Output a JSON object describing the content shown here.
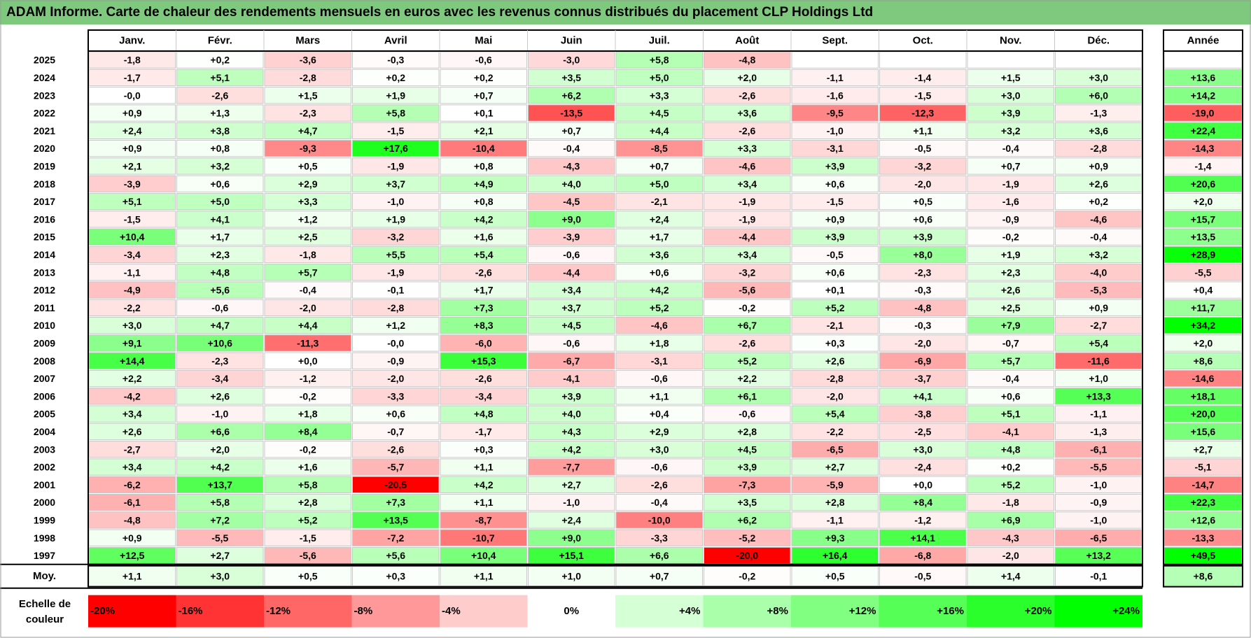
{
  "title": "ADAM Informe. Carte de chaleur des rendements mensuels en euros avec les revenus connus distribués du placement CLP Holdings Ltd",
  "chart_data": {
    "type": "heatmap",
    "title": "ADAM Informe. Carte de chaleur des rendements mensuels en euros avec les revenus connus distribués du placement CLP Holdings Ltd",
    "columns": [
      "Janv.",
      "Févr.",
      "Mars",
      "Avril",
      "Mai",
      "Juin",
      "Juil.",
      "Août",
      "Sept.",
      "Oct.",
      "Nov.",
      "Déc."
    ],
    "year_column_label": "Année",
    "rows": [
      {
        "year": "2025",
        "months": [
          "-1,8",
          "+0,2",
          "-3,6",
          "-0,3",
          "-0,6",
          "-3,0",
          "+5,8",
          "-4,8",
          "",
          "",
          "",
          ""
        ],
        "annual": ""
      },
      {
        "year": "2024",
        "months": [
          "-1,7",
          "+5,1",
          "-2,8",
          "+0,2",
          "+0,2",
          "+3,5",
          "+5,0",
          "+2,0",
          "-1,1",
          "-1,4",
          "+1,5",
          "+3,0"
        ],
        "annual": "+13,6"
      },
      {
        "year": "2023",
        "months": [
          "-0,0",
          "-2,6",
          "+1,5",
          "+1,9",
          "+0,7",
          "+6,2",
          "+3,3",
          "-2,6",
          "-1,6",
          "-1,5",
          "+3,0",
          "+6,0"
        ],
        "annual": "+14,2"
      },
      {
        "year": "2022",
        "months": [
          "+0,9",
          "+1,3",
          "-2,3",
          "+5,8",
          "+0,1",
          "-13,5",
          "+4,5",
          "+3,6",
          "-9,5",
          "-12,3",
          "+3,9",
          "-1,3"
        ],
        "annual": "-19,0"
      },
      {
        "year": "2021",
        "months": [
          "+2,4",
          "+3,8",
          "+4,7",
          "-1,5",
          "+2,1",
          "+0,7",
          "+4,4",
          "-2,6",
          "-1,0",
          "+1,1",
          "+3,2",
          "+3,6"
        ],
        "annual": "+22,4"
      },
      {
        "year": "2020",
        "months": [
          "+0,9",
          "+0,8",
          "-9,3",
          "+17,6",
          "-10,4",
          "-0,4",
          "-8,5",
          "+3,3",
          "-3,1",
          "-0,5",
          "-0,4",
          "-2,8"
        ],
        "annual": "-14,3"
      },
      {
        "year": "2019",
        "months": [
          "+2,1",
          "+3,2",
          "+0,5",
          "-1,9",
          "+0,8",
          "-4,3",
          "+0,7",
          "-4,6",
          "+3,9",
          "-3,2",
          "+0,7",
          "+0,9"
        ],
        "annual": "-1,4"
      },
      {
        "year": "2018",
        "months": [
          "-3,9",
          "+0,6",
          "+2,9",
          "+3,7",
          "+4,9",
          "+4,0",
          "+5,0",
          "+3,4",
          "+0,6",
          "-2,0",
          "-1,9",
          "+2,6"
        ],
        "annual": "+20,6"
      },
      {
        "year": "2017",
        "months": [
          "+5,1",
          "+5,0",
          "+3,3",
          "-1,0",
          "+0,8",
          "-4,5",
          "-2,1",
          "-1,9",
          "-1,5",
          "+0,5",
          "-1,6",
          "+0,2"
        ],
        "annual": "+2,0"
      },
      {
        "year": "2016",
        "months": [
          "-1,5",
          "+4,1",
          "+1,2",
          "+1,9",
          "+4,2",
          "+9,0",
          "+2,4",
          "-1,9",
          "+0,9",
          "+0,6",
          "-0,9",
          "-4,6"
        ],
        "annual": "+15,7"
      },
      {
        "year": "2015",
        "months": [
          "+10,4",
          "+1,7",
          "+2,5",
          "-3,2",
          "+1,6",
          "-3,9",
          "+1,7",
          "-4,4",
          "+3,9",
          "+3,9",
          "-0,2",
          "-0,4"
        ],
        "annual": "+13,5"
      },
      {
        "year": "2014",
        "months": [
          "-3,4",
          "+2,3",
          "-1,8",
          "+5,5",
          "+5,4",
          "-0,6",
          "+3,6",
          "+3,4",
          "-0,5",
          "+8,0",
          "+1,9",
          "+3,2"
        ],
        "annual": "+28,9"
      },
      {
        "year": "2013",
        "months": [
          "-1,1",
          "+4,8",
          "+5,7",
          "-1,9",
          "-2,6",
          "-4,4",
          "+0,6",
          "-3,2",
          "+0,6",
          "-2,3",
          "+2,3",
          "-4,0"
        ],
        "annual": "-5,5"
      },
      {
        "year": "2012",
        "months": [
          "-4,9",
          "+5,6",
          "-0,4",
          "-0,1",
          "+1,7",
          "+3,4",
          "+4,2",
          "-5,6",
          "+0,1",
          "-0,3",
          "+2,6",
          "-5,3"
        ],
        "annual": "+0,4"
      },
      {
        "year": "2011",
        "months": [
          "-2,2",
          "-0,6",
          "-2,0",
          "-2,8",
          "+7,3",
          "+3,7",
          "+5,2",
          "-0,2",
          "+5,2",
          "-4,8",
          "+2,5",
          "+0,9"
        ],
        "annual": "+11,7"
      },
      {
        "year": "2010",
        "months": [
          "+3,0",
          "+4,7",
          "+4,4",
          "+1,2",
          "+8,3",
          "+4,5",
          "-4,6",
          "+6,7",
          "-2,1",
          "-0,3",
          "+7,9",
          "-2,7"
        ],
        "annual": "+34,2"
      },
      {
        "year": "2009",
        "months": [
          "+9,1",
          "+10,6",
          "-11,3",
          "-0,0",
          "-6,0",
          "-0,6",
          "+1,8",
          "-2,6",
          "+0,3",
          "-2,0",
          "-0,7",
          "+5,4"
        ],
        "annual": "+2,0"
      },
      {
        "year": "2008",
        "months": [
          "+14,4",
          "-2,3",
          "+0,0",
          "-0,9",
          "+15,3",
          "-6,7",
          "-3,1",
          "+5,2",
          "+2,6",
          "-6,9",
          "+5,7",
          "-11,6"
        ],
        "annual": "+8,6"
      },
      {
        "year": "2007",
        "months": [
          "+2,2",
          "-3,4",
          "-1,2",
          "-2,0",
          "-2,6",
          "-4,1",
          "-0,6",
          "+2,2",
          "-2,8",
          "-3,7",
          "-0,4",
          "+1,0"
        ],
        "annual": "-14,6"
      },
      {
        "year": "2006",
        "months": [
          "-4,2",
          "+2,6",
          "-0,2",
          "-3,3",
          "-3,4",
          "+3,9",
          "+1,1",
          "+6,1",
          "-2,0",
          "+4,1",
          "+0,6",
          "+13,3"
        ],
        "annual": "+18,1"
      },
      {
        "year": "2005",
        "months": [
          "+3,4",
          "-1,0",
          "+1,8",
          "+0,6",
          "+4,8",
          "+4,0",
          "+0,4",
          "-0,6",
          "+5,4",
          "-3,8",
          "+5,1",
          "-1,1"
        ],
        "annual": "+20,0"
      },
      {
        "year": "2004",
        "months": [
          "+2,6",
          "+6,6",
          "+8,4",
          "-0,7",
          "-1,7",
          "+4,3",
          "+2,9",
          "+2,8",
          "-2,2",
          "-2,5",
          "-4,1",
          "-1,3"
        ],
        "annual": "+15,6"
      },
      {
        "year": "2003",
        "months": [
          "-2,7",
          "+2,0",
          "-0,2",
          "-2,6",
          "+0,3",
          "+4,2",
          "+3,0",
          "+4,5",
          "-6,5",
          "+3,0",
          "+4,8",
          "-6,1"
        ],
        "annual": "+2,7"
      },
      {
        "year": "2002",
        "months": [
          "+3,4",
          "+4,2",
          "+1,6",
          "-5,7",
          "+1,1",
          "-7,7",
          "-0,6",
          "+3,9",
          "+2,7",
          "-2,4",
          "+0,2",
          "-5,5"
        ],
        "annual": "-5,1"
      },
      {
        "year": "2001",
        "months": [
          "-6,2",
          "+13,7",
          "+5,8",
          "-20,5",
          "+4,2",
          "+2,7",
          "-2,6",
          "-7,3",
          "-5,9",
          "+0,0",
          "+5,2",
          "-1,0"
        ],
        "annual": "-14,7"
      },
      {
        "year": "2000",
        "months": [
          "-6,1",
          "+5,8",
          "+2,8",
          "+7,3",
          "+1,1",
          "-1,0",
          "-0,4",
          "+3,5",
          "+2,8",
          "+8,4",
          "-1,8",
          "-0,9"
        ],
        "annual": "+22,3"
      },
      {
        "year": "1999",
        "months": [
          "-4,8",
          "+7,2",
          "+5,2",
          "+13,5",
          "-8,7",
          "+2,4",
          "-10,0",
          "+6,2",
          "-1,1",
          "-1,2",
          "+6,9",
          "-1,0"
        ],
        "annual": "+12,6"
      },
      {
        "year": "1998",
        "months": [
          "+0,9",
          "-5,5",
          "-1,5",
          "-7,2",
          "-10,7",
          "+9,0",
          "-3,3",
          "-5,2",
          "+9,3",
          "+14,1",
          "-4,3",
          "-6,5"
        ],
        "annual": "-13,3"
      },
      {
        "year": "1997",
        "months": [
          "+12,5",
          "+2,7",
          "-5,6",
          "+5,6",
          "+10,4",
          "+15,1",
          "+6,6",
          "-20,0",
          "+16,4",
          "-6,8",
          "-2,0",
          "+13,2"
        ],
        "annual": "+49,5"
      }
    ],
    "average_row": {
      "label": "Moy.",
      "months": [
        "+1,1",
        "+3,0",
        "+0,5",
        "+0,3",
        "+1,1",
        "+1,0",
        "+0,7",
        "-0,2",
        "+0,5",
        "-0,5",
        "+1,4",
        "-0,1"
      ],
      "annual": "+8,6"
    },
    "color_scale": {
      "label_line1": "Echelle de",
      "label_line2": "couleur",
      "stops": [
        {
          "label": "-20%",
          "value": -20,
          "color": "#ff0000"
        },
        {
          "label": "-16%",
          "value": -16,
          "color": "#ff3333"
        },
        {
          "label": "-12%",
          "value": -12,
          "color": "#ff6666"
        },
        {
          "label": "-8%",
          "value": -8,
          "color": "#ff9999"
        },
        {
          "label": "-4%",
          "value": -4,
          "color": "#ffcccc"
        },
        {
          "label": "0%",
          "value": 0,
          "color": "#ffffff"
        },
        {
          "label": "+4%",
          "value": 4,
          "color": "#d5ffd5"
        },
        {
          "label": "+8%",
          "value": 8,
          "color": "#aaffaa"
        },
        {
          "label": "+12%",
          "value": 12,
          "color": "#80ff80"
        },
        {
          "label": "+16%",
          "value": 16,
          "color": "#55ff55"
        },
        {
          "label": "+20%",
          "value": 20,
          "color": "#2bff2b"
        },
        {
          "label": "+24%",
          "value": 24,
          "color": "#00ff00"
        }
      ]
    }
  },
  "colors": {
    "title_bar": "#7fc97f",
    "negative_max": "#ff0000",
    "positive_max": "#00ff00",
    "neutral": "#ffffff",
    "cell_border": "#c8c8c8",
    "frame_border": "#000000"
  }
}
